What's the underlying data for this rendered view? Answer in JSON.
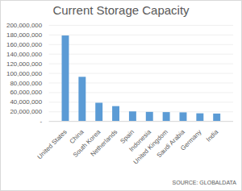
{
  "chart_data": {
    "type": "bar",
    "title": "Current Storage Capacity",
    "source": "SOURCE: GLOBALDATA",
    "categories": [
      "United States",
      "China",
      "South Korea",
      "Netherlands",
      "Spain",
      "Indonesia",
      "United Kingdom",
      "Saudi Arabia",
      "Germany",
      "India"
    ],
    "values": [
      178000000,
      92000000,
      38000000,
      31000000,
      20000000,
      19000000,
      18500000,
      18000000,
      16000000,
      15500000
    ],
    "color": "#5b9bd5",
    "ylim": [
      0,
      200000000
    ],
    "yticks": [
      {
        "value": 0,
        "label": "-"
      },
      {
        "value": 20000000,
        "label": "20,000,000"
      },
      {
        "value": 40000000,
        "label": "40,000,000"
      },
      {
        "value": 60000000,
        "label": "60,000,000"
      },
      {
        "value": 80000000,
        "label": "80,000,000"
      },
      {
        "value": 100000000,
        "label": "100,000,000"
      },
      {
        "value": 120000000,
        "label": "120,000,000"
      },
      {
        "value": 140000000,
        "label": "140,000,000"
      },
      {
        "value": 160000000,
        "label": "160,000,000"
      },
      {
        "value": 180000000,
        "label": "180,000,000"
      },
      {
        "value": 200000000,
        "label": "200,000,000"
      }
    ],
    "grid": true
  }
}
